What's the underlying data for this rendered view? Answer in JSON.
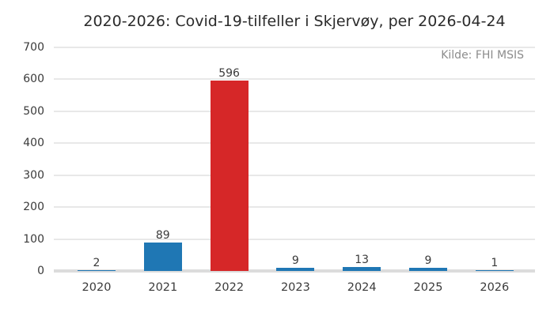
{
  "chart_data": {
    "type": "bar",
    "title": "2020-2026: Covid-19-tilfeller i Skjervøy, per 2026-04-24",
    "annotation": "Kilde: FHI MSIS",
    "categories": [
      "2020",
      "2021",
      "2022",
      "2023",
      "2024",
      "2025",
      "2026"
    ],
    "values": [
      2,
      89,
      596,
      9,
      13,
      9,
      1
    ],
    "data_labels": [
      "2",
      "89",
      "596",
      "9",
      "13",
      "9",
      "1"
    ],
    "bar_colors": [
      "#1f77b4",
      "#1f77b4",
      "#d62728",
      "#1f77b4",
      "#1f77b4",
      "#1f77b4",
      "#1f77b4"
    ],
    "xlabel": "",
    "ylabel": "",
    "ylim": [
      0,
      700
    ],
    "yticks": [
      0,
      100,
      200,
      300,
      400,
      500,
      600,
      700
    ],
    "grid": true,
    "legend": false
  },
  "colors": {
    "bar_default": "#1f77b4",
    "bar_highlight": "#d62728",
    "grid": "#e8e8e8",
    "zero_line": "#dcdcdc",
    "text": "#3a3a3a",
    "muted_text": "#8c8c8c",
    "background": "#ffffff"
  }
}
